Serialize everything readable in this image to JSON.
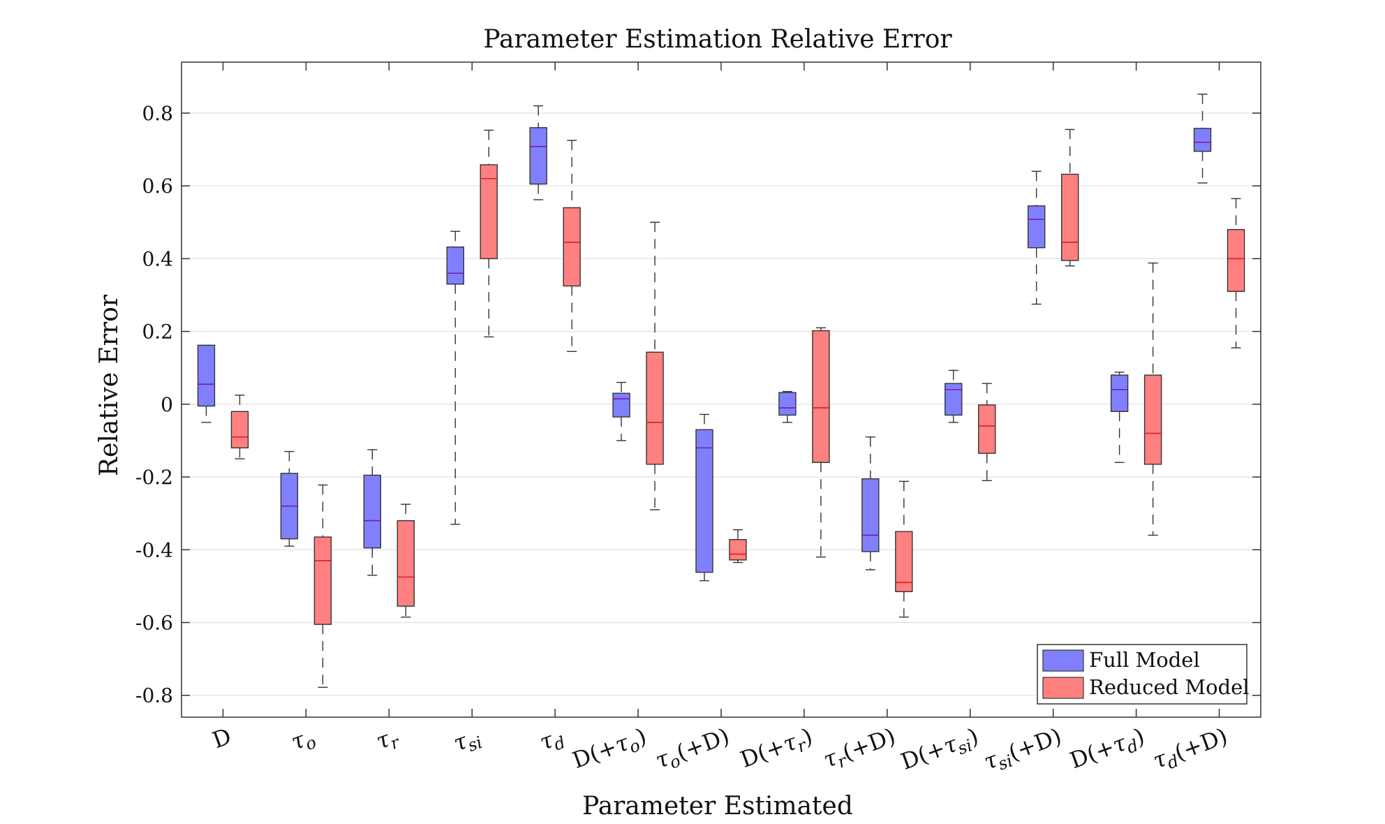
{
  "chart_data": {
    "type": "box",
    "title": "Parameter Estimation Relative Error",
    "xlabel": "Parameter Estimated",
    "ylabel": "Relative Error",
    "ylim": [
      -0.86,
      0.94
    ],
    "yticks": [
      -0.8,
      -0.6,
      -0.4,
      -0.2,
      0,
      0.2,
      0.4,
      0.6,
      0.8
    ],
    "ytick_labels": [
      "-0.8",
      "-0.6",
      "-0.4",
      "-0.2",
      "0",
      "0.2",
      "0.4",
      "0.6",
      "0.8"
    ],
    "grid": "horizontal",
    "legend_position": "bottom-right",
    "categories": [
      [
        {
          "t": "D"
        }
      ],
      [
        {
          "t": "τ",
          "i": true
        },
        {
          "t": "o",
          "i": true,
          "sub": true
        }
      ],
      [
        {
          "t": "τ",
          "i": true
        },
        {
          "t": "r",
          "i": true,
          "sub": true
        }
      ],
      [
        {
          "t": "τ",
          "i": true
        },
        {
          "t": "si",
          "i": true,
          "sub": true
        }
      ],
      [
        {
          "t": "τ",
          "i": true
        },
        {
          "t": "d",
          "i": true,
          "sub": true
        }
      ],
      [
        {
          "t": "D(+"
        },
        {
          "t": "τ",
          "i": true
        },
        {
          "t": "o",
          "i": true,
          "sub": true
        },
        {
          "t": ")"
        }
      ],
      [
        {
          "t": "τ",
          "i": true
        },
        {
          "t": "o",
          "i": true,
          "sub": true
        },
        {
          "t": "(+D)"
        }
      ],
      [
        {
          "t": "D(+"
        },
        {
          "t": "τ",
          "i": true
        },
        {
          "t": "r",
          "i": true,
          "sub": true
        },
        {
          "t": ")"
        }
      ],
      [
        {
          "t": "τ",
          "i": true
        },
        {
          "t": "r",
          "i": true,
          "sub": true
        },
        {
          "t": "(+D)"
        }
      ],
      [
        {
          "t": "D(+"
        },
        {
          "t": "τ",
          "i": true
        },
        {
          "t": "si",
          "i": true,
          "sub": true
        },
        {
          "t": ")"
        }
      ],
      [
        {
          "t": "τ",
          "i": true
        },
        {
          "t": "si",
          "i": true,
          "sub": true
        },
        {
          "t": "(+D)"
        }
      ],
      [
        {
          "t": "D(+"
        },
        {
          "t": "τ",
          "i": true
        },
        {
          "t": "d",
          "i": true,
          "sub": true
        },
        {
          "t": ")"
        }
      ],
      [
        {
          "t": "τ",
          "i": true
        },
        {
          "t": "d",
          "i": true,
          "sub": true
        },
        {
          "t": "(+D)"
        }
      ]
    ],
    "series": [
      {
        "name": "Full Model",
        "fill": "#8080ff",
        "median_color": "#7a1aa0",
        "boxes": [
          {
            "min": -0.05,
            "q1": -0.005,
            "median": 0.055,
            "q3": 0.162,
            "max": 0.162
          },
          {
            "min": -0.39,
            "q1": -0.37,
            "median": -0.28,
            "q3": -0.19,
            "max": -0.13
          },
          {
            "min": -0.47,
            "q1": -0.395,
            "median": -0.32,
            "q3": -0.195,
            "max": -0.125
          },
          {
            "min": -0.33,
            "q1": 0.33,
            "median": 0.36,
            "q3": 0.432,
            "max": 0.475
          },
          {
            "min": 0.562,
            "q1": 0.605,
            "median": 0.708,
            "q3": 0.76,
            "max": 0.82
          },
          {
            "min": -0.1,
            "q1": -0.035,
            "median": 0.015,
            "q3": 0.03,
            "max": 0.06
          },
          {
            "min": -0.485,
            "q1": -0.462,
            "median": -0.12,
            "q3": -0.07,
            "max": -0.028
          },
          {
            "min": -0.05,
            "q1": -0.03,
            "median": -0.01,
            "q3": 0.032,
            "max": 0.035
          },
          {
            "min": -0.455,
            "q1": -0.405,
            "median": -0.36,
            "q3": -0.205,
            "max": -0.09
          },
          {
            "min": -0.05,
            "q1": -0.03,
            "median": 0.04,
            "q3": 0.057,
            "max": 0.093
          },
          {
            "min": 0.275,
            "q1": 0.43,
            "median": 0.508,
            "q3": 0.545,
            "max": 0.64
          },
          {
            "min": -0.16,
            "q1": -0.02,
            "median": 0.04,
            "q3": 0.08,
            "max": 0.088
          },
          {
            "min": 0.608,
            "q1": 0.695,
            "median": 0.72,
            "q3": 0.758,
            "max": 0.852
          }
        ]
      },
      {
        "name": "Reduced Model",
        "fill": "#ff8080",
        "median_color": "#d41f1f",
        "boxes": [
          {
            "min": -0.15,
            "q1": -0.12,
            "median": -0.09,
            "q3": -0.02,
            "max": 0.025
          },
          {
            "min": -0.778,
            "q1": -0.605,
            "median": -0.43,
            "q3": -0.365,
            "max": -0.222
          },
          {
            "min": -0.585,
            "q1": -0.555,
            "median": -0.475,
            "q3": -0.32,
            "max": -0.275
          },
          {
            "min": 0.185,
            "q1": 0.4,
            "median": 0.62,
            "q3": 0.658,
            "max": 0.753
          },
          {
            "min": 0.145,
            "q1": 0.325,
            "median": 0.445,
            "q3": 0.54,
            "max": 0.725
          },
          {
            "min": -0.29,
            "q1": -0.165,
            "median": -0.05,
            "q3": 0.143,
            "max": 0.5
          },
          {
            "min": -0.435,
            "q1": -0.428,
            "median": -0.412,
            "q3": -0.372,
            "max": -0.345
          },
          {
            "min": -0.42,
            "q1": -0.16,
            "median": -0.01,
            "q3": 0.202,
            "max": 0.21
          },
          {
            "min": -0.585,
            "q1": -0.515,
            "median": -0.49,
            "q3": -0.35,
            "max": -0.212
          },
          {
            "min": -0.21,
            "q1": -0.135,
            "median": -0.06,
            "q3": -0.002,
            "max": 0.057
          },
          {
            "min": 0.38,
            "q1": 0.395,
            "median": 0.445,
            "q3": 0.632,
            "max": 0.755
          },
          {
            "min": -0.36,
            "q1": -0.165,
            "median": -0.08,
            "q3": 0.08,
            "max": 0.388
          },
          {
            "min": 0.155,
            "q1": 0.31,
            "median": 0.4,
            "q3": 0.48,
            "max": 0.565
          }
        ]
      }
    ]
  }
}
